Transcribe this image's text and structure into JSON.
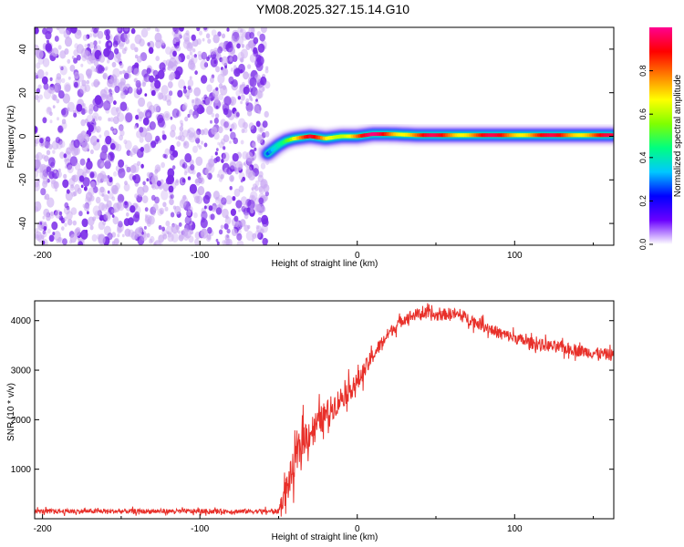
{
  "title": "YM08.2025.327.15.14.G10",
  "colors": {
    "snr_line": "#e8302a",
    "noise_dot": "#7a2be8",
    "noise_light": "#c9a8f2",
    "axis": "#000000"
  },
  "colorbar": {
    "label": "Normalized spectral amplitude",
    "ticks": [
      {
        "value": 0.0,
        "label": "0.0"
      },
      {
        "value": 0.2,
        "label": "0.2"
      },
      {
        "value": 0.4,
        "label": "0.4"
      },
      {
        "value": 0.6,
        "label": "0.6"
      },
      {
        "value": 0.8,
        "label": "0.8"
      }
    ],
    "stops": [
      "#ffffff",
      "#6a00ff",
      "#0000ff",
      "#00c8ff",
      "#00ff80",
      "#80ff00",
      "#ffff00",
      "#ff8000",
      "#ff0000",
      "#ff0090"
    ]
  },
  "chart_data": [
    {
      "type": "heatmap",
      "title": "YM08.2025.327.15.14.G10",
      "xlabel": "Height of straight line (km)",
      "ylabel": "Frequency (Hz)",
      "xlim": [
        -205,
        163
      ],
      "ylim": [
        -50,
        50
      ],
      "xticks": [
        {
          "value": -200,
          "label": "-200"
        },
        {
          "value": -100,
          "label": "-100"
        },
        {
          "value": 0,
          "label": "0"
        },
        {
          "value": 100,
          "label": "100"
        }
      ],
      "yticks": [
        {
          "value": -40,
          "label": "-40"
        },
        {
          "value": -20,
          "label": "-20"
        },
        {
          "value": 0,
          "label": "0"
        },
        {
          "value": 20,
          "label": "20"
        },
        {
          "value": 40,
          "label": "40"
        }
      ],
      "noise_region_x": [
        -205,
        -57
      ],
      "ridge": {
        "x": [
          -57,
          -50,
          -45,
          -40,
          -30,
          -20,
          -10,
          0,
          10,
          20,
          40,
          60,
          80,
          100,
          120,
          140,
          163
        ],
        "freq": [
          -8,
          -4,
          -2,
          -1,
          0,
          -1,
          0,
          0,
          1,
          1,
          0.5,
          0.5,
          0.5,
          0.5,
          0.5,
          0.5,
          0.5
        ],
        "amplitude": [
          0.3,
          0.55,
          0.7,
          0.8,
          0.9,
          0.75,
          0.85,
          0.9,
          0.95,
          0.95,
          0.9,
          0.95,
          0.9,
          0.95,
          0.9,
          0.95,
          0.9
        ]
      }
    },
    {
      "type": "line",
      "xlabel": "Height of straight line (km)",
      "ylabel": "SNR (10 * v/v)",
      "xlim": [
        -205,
        163
      ],
      "ylim": [
        0,
        4400
      ],
      "xticks": [
        {
          "value": -200,
          "label": "-200"
        },
        {
          "value": -100,
          "label": "-100"
        },
        {
          "value": 0,
          "label": "0"
        },
        {
          "value": 100,
          "label": "100"
        }
      ],
      "yticks": [
        {
          "value": 1000,
          "label": "1000"
        },
        {
          "value": 2000,
          "label": "2000"
        },
        {
          "value": 3000,
          "label": "3000"
        },
        {
          "value": 4000,
          "label": "4000"
        }
      ],
      "series": [
        {
          "name": "SNR",
          "x": [
            -205,
            -150,
            -100,
            -60,
            -50,
            -45,
            -40,
            -35,
            -30,
            -20,
            -10,
            0,
            10,
            20,
            30,
            40,
            50,
            60,
            70,
            80,
            90,
            100,
            110,
            120,
            130,
            140,
            150,
            163
          ],
          "values": [
            150,
            150,
            150,
            150,
            150,
            600,
            1050,
            1600,
            1750,
            2100,
            2450,
            2750,
            3300,
            3750,
            4050,
            4150,
            4100,
            4150,
            4050,
            3900,
            3750,
            3650,
            3550,
            3500,
            3450,
            3400,
            3350,
            3300
          ],
          "noise_amplitude": [
            60,
            60,
            60,
            60,
            60,
            400,
            450,
            450,
            400,
            350,
            300,
            250,
            200,
            150,
            150,
            150,
            150,
            150,
            150,
            150,
            150,
            150,
            150,
            150,
            150,
            150,
            150,
            150
          ]
        }
      ]
    }
  ]
}
